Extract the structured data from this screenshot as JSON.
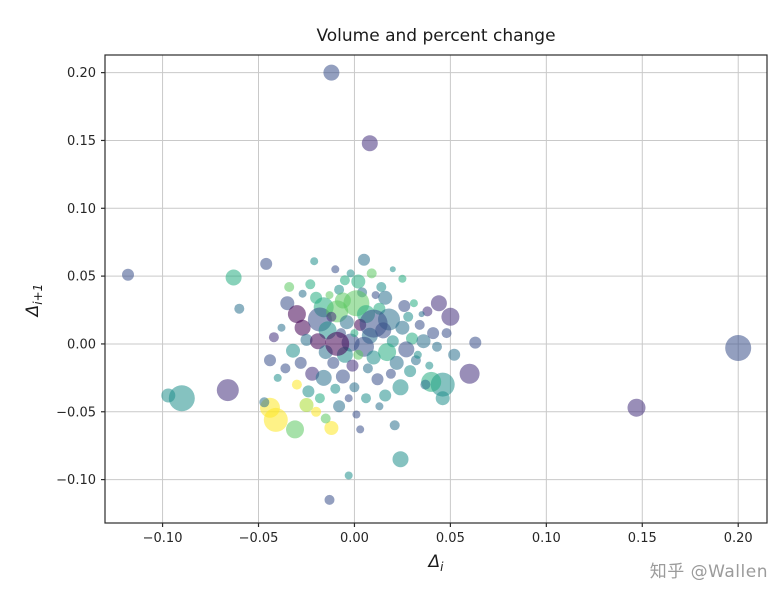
{
  "title": "Volume and percent change",
  "watermark": "知乎 @Wallen",
  "chart_data": {
    "type": "scatter",
    "title": "Volume and percent change",
    "xlabel_base": "Δ",
    "xlabel_sub": "i",
    "ylabel_base": "Δ",
    "ylabel_sub": "i+1",
    "xlim": [
      -0.13,
      0.215
    ],
    "ylim": [
      -0.132,
      0.213
    ],
    "x_ticks": [
      -0.1,
      -0.05,
      0.0,
      0.05,
      0.1,
      0.15,
      0.2
    ],
    "y_ticks": [
      -0.1,
      -0.05,
      0.0,
      0.05,
      0.1,
      0.15,
      0.2
    ],
    "grid": true,
    "legend": false,
    "colormap": "viridis",
    "opacity": 0.55,
    "palette": [
      "#440154",
      "#46327e",
      "#3b518b",
      "#2c718e",
      "#21908d",
      "#27ad81",
      "#5cc863",
      "#aadc32",
      "#fde725"
    ],
    "points_format": [
      "x",
      "y",
      "radius_px",
      "palette_index"
    ],
    "points": [
      [
        -0.012,
        0.2,
        8,
        2
      ],
      [
        0.008,
        0.148,
        8,
        1
      ],
      [
        0.2,
        -0.003,
        13,
        2
      ],
      [
        0.147,
        -0.047,
        9,
        1
      ],
      [
        -0.118,
        0.051,
        6,
        2
      ],
      [
        -0.09,
        -0.04,
        13,
        4
      ],
      [
        -0.097,
        -0.038,
        7,
        4
      ],
      [
        -0.066,
        -0.034,
        11,
        1
      ],
      [
        -0.063,
        0.049,
        8,
        5
      ],
      [
        -0.06,
        0.026,
        5,
        3
      ],
      [
        -0.046,
        0.059,
        6,
        2
      ],
      [
        -0.044,
        -0.047,
        10,
        8
      ],
      [
        -0.041,
        -0.056,
        12,
        8
      ],
      [
        -0.047,
        -0.043,
        5,
        3
      ],
      [
        -0.031,
        -0.063,
        9,
        6
      ],
      [
        -0.012,
        -0.062,
        7,
        8
      ],
      [
        -0.013,
        -0.115,
        5,
        2
      ],
      [
        -0.003,
        -0.097,
        4,
        4
      ],
      [
        0.024,
        -0.085,
        8,
        4
      ],
      [
        0.021,
        -0.06,
        5,
        3
      ],
      [
        0.003,
        -0.063,
        4,
        2
      ],
      [
        0.06,
        -0.022,
        10,
        1
      ],
      [
        0.063,
        0.001,
        6,
        2
      ],
      [
        0.05,
        0.02,
        9,
        1
      ],
      [
        0.046,
        -0.03,
        12,
        4
      ],
      [
        0.04,
        -0.028,
        10,
        5
      ],
      [
        0.005,
        0.062,
        6,
        3
      ],
      [
        -0.021,
        0.061,
        4,
        4
      ],
      [
        -0.035,
        0.03,
        7,
        2
      ],
      [
        -0.03,
        0.022,
        9,
        0
      ],
      [
        -0.027,
        0.012,
        8,
        0
      ],
      [
        -0.025,
        0.003,
        6,
        3
      ],
      [
        -0.032,
        -0.005,
        7,
        4
      ],
      [
        -0.028,
        -0.014,
        6,
        2
      ],
      [
        -0.022,
        -0.022,
        7,
        1
      ],
      [
        -0.03,
        -0.03,
        5,
        8
      ],
      [
        -0.024,
        -0.035,
        6,
        4
      ],
      [
        -0.018,
        -0.04,
        5,
        5
      ],
      [
        -0.02,
        0.034,
        6,
        5
      ],
      [
        -0.016,
        0.027,
        10,
        5
      ],
      [
        -0.018,
        0.018,
        12,
        2
      ],
      [
        -0.014,
        0.01,
        9,
        4
      ],
      [
        -0.019,
        0.002,
        8,
        0
      ],
      [
        -0.015,
        -0.006,
        7,
        3
      ],
      [
        -0.011,
        -0.014,
        6,
        2
      ],
      [
        -0.016,
        -0.025,
        8,
        3
      ],
      [
        -0.01,
        -0.033,
        5,
        4
      ],
      [
        -0.008,
        -0.046,
        6,
        3
      ],
      [
        -0.008,
        0.04,
        5,
        4
      ],
      [
        -0.006,
        0.032,
        8,
        6
      ],
      [
        -0.009,
        0.024,
        11,
        6
      ],
      [
        -0.004,
        0.016,
        7,
        3
      ],
      [
        -0.007,
        0.008,
        5,
        2
      ],
      [
        -0.002,
        0.001,
        9,
        2
      ],
      [
        -0.005,
        -0.008,
        8,
        4
      ],
      [
        -0.001,
        -0.016,
        6,
        1
      ],
      [
        -0.006,
        -0.024,
        7,
        2
      ],
      [
        0.0,
        -0.032,
        5,
        3
      ],
      [
        0.002,
        0.046,
        7,
        5
      ],
      [
        0.004,
        0.038,
        5,
        3
      ],
      [
        0.001,
        0.03,
        13,
        6
      ],
      [
        0.006,
        0.022,
        9,
        5
      ],
      [
        0.003,
        0.014,
        6,
        0
      ],
      [
        0.008,
        0.006,
        8,
        3
      ],
      [
        0.005,
        -0.002,
        10,
        2
      ],
      [
        0.01,
        -0.01,
        7,
        4
      ],
      [
        0.007,
        -0.018,
        5,
        3
      ],
      [
        0.012,
        -0.026,
        6,
        2
      ],
      [
        0.014,
        0.042,
        5,
        4
      ],
      [
        0.016,
        0.034,
        7,
        3
      ],
      [
        0.013,
        0.026,
        6,
        5
      ],
      [
        0.018,
        0.018,
        11,
        3
      ],
      [
        0.015,
        0.01,
        8,
        2
      ],
      [
        0.02,
        0.002,
        6,
        4
      ],
      [
        0.017,
        -0.006,
        9,
        5
      ],
      [
        0.022,
        -0.014,
        7,
        3
      ],
      [
        0.019,
        -0.022,
        5,
        2
      ],
      [
        0.024,
        -0.032,
        8,
        4
      ],
      [
        0.026,
        0.028,
        6,
        2
      ],
      [
        0.028,
        0.02,
        5,
        4
      ],
      [
        0.025,
        0.012,
        7,
        3
      ],
      [
        0.03,
        0.004,
        6,
        5
      ],
      [
        0.027,
        -0.004,
        8,
        2
      ],
      [
        0.032,
        -0.012,
        5,
        3
      ],
      [
        0.029,
        -0.02,
        6,
        4
      ],
      [
        0.034,
        0.014,
        5,
        2
      ],
      [
        0.036,
        0.002,
        7,
        3
      ],
      [
        0.033,
        -0.008,
        4,
        4
      ],
      [
        -0.038,
        0.012,
        4,
        3
      ],
      [
        -0.036,
        -0.018,
        5,
        2
      ],
      [
        -0.013,
        0.036,
        4,
        6
      ],
      [
        0.009,
        0.052,
        5,
        6
      ],
      [
        -0.002,
        0.052,
        4,
        4
      ],
      [
        0.011,
        0.036,
        4,
        2
      ],
      [
        0.038,
        0.024,
        5,
        1
      ],
      [
        0.041,
        0.008,
        6,
        2
      ],
      [
        0.043,
        -0.002,
        5,
        3
      ],
      [
        0.039,
        -0.016,
        4,
        4
      ],
      [
        -0.023,
        0.044,
        5,
        5
      ],
      [
        -0.027,
        0.037,
        4,
        3
      ],
      [
        0.0,
        0.008,
        4,
        5
      ],
      [
        0.002,
        -0.008,
        5,
        6
      ],
      [
        -0.003,
        -0.04,
        4,
        2
      ],
      [
        0.006,
        -0.04,
        5,
        4
      ],
      [
        0.013,
        -0.046,
        4,
        3
      ],
      [
        0.016,
        -0.038,
        6,
        4
      ],
      [
        -0.02,
        -0.05,
        5,
        8
      ],
      [
        -0.025,
        -0.045,
        7,
        7
      ],
      [
        0.031,
        0.03,
        4,
        5
      ],
      [
        0.035,
        0.022,
        3,
        3
      ],
      [
        -0.042,
        0.005,
        5,
        1
      ],
      [
        -0.044,
        -0.012,
        6,
        2
      ],
      [
        -0.04,
        -0.025,
        4,
        4
      ],
      [
        -0.034,
        0.042,
        5,
        6
      ],
      [
        0.044,
        0.03,
        8,
        1
      ],
      [
        0.048,
        0.008,
        5,
        2
      ],
      [
        0.052,
        -0.008,
        6,
        3
      ],
      [
        0.046,
        -0.04,
        7,
        4
      ],
      [
        0.001,
        -0.052,
        4,
        2
      ],
      [
        -0.015,
        -0.055,
        5,
        6
      ],
      [
        0.025,
        0.048,
        4,
        5
      ],
      [
        0.02,
        0.055,
        3,
        4
      ],
      [
        -0.01,
        0.055,
        4,
        2
      ],
      [
        -0.005,
        0.047,
        5,
        5
      ],
      [
        0.037,
        -0.03,
        5,
        3
      ],
      [
        0.01,
        0.015,
        14,
        2
      ],
      [
        -0.012,
        0.02,
        5,
        1
      ],
      [
        -0.009,
        0.0,
        12,
        0
      ]
    ]
  }
}
